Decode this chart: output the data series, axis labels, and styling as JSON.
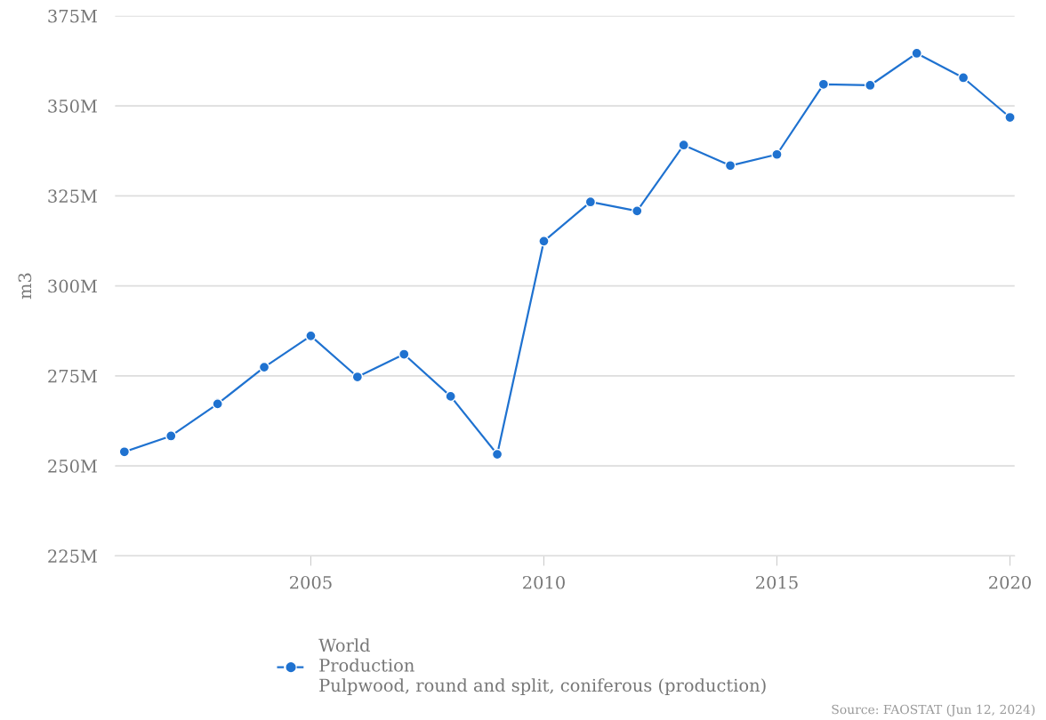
{
  "chart_data": {
    "type": "line",
    "ylabel": "m3",
    "x": [
      2001,
      2002,
      2003,
      2004,
      2005,
      2006,
      2007,
      2008,
      2009,
      2010,
      2011,
      2012,
      2013,
      2014,
      2015,
      2016,
      2017,
      2018,
      2019,
      2020
    ],
    "series": [
      {
        "name": "World\nProduction\nPulpwood, round and split, coniferous (production)",
        "color": "#1f72d0",
        "values": [
          253900000,
          258300000,
          267200000,
          277400000,
          286100000,
          274700000,
          281000000,
          269300000,
          253200000,
          312400000,
          323300000,
          320800000,
          339100000,
          333400000,
          336500000,
          356000000,
          355700000,
          364600000,
          357800000,
          346800000
        ]
      }
    ],
    "xlim": [
      2000.8,
      2020.1
    ],
    "xticks": [
      2005,
      2010,
      2015,
      2020
    ],
    "ylim": [
      225000000,
      375000000
    ],
    "yticks": [
      {
        "value": 225000000,
        "label": "225M"
      },
      {
        "value": 250000000,
        "label": "250M"
      },
      {
        "value": 275000000,
        "label": "275M"
      },
      {
        "value": 300000000,
        "label": "300M"
      },
      {
        "value": 325000000,
        "label": "325M"
      },
      {
        "value": 350000000,
        "label": "350M"
      },
      {
        "value": 375000000,
        "label": "375M"
      }
    ],
    "grid": "y",
    "legend": "bottom",
    "marker": "circle",
    "line_style": "solid",
    "annotations": [
      "Source: FAOSTAT (Jun 12, 2024)"
    ]
  }
}
